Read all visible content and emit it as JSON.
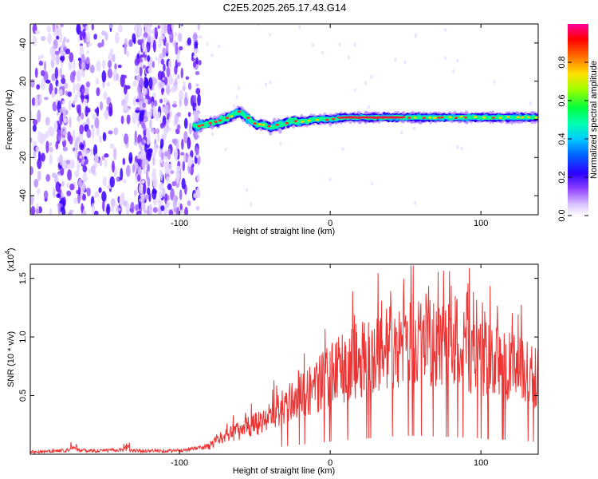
{
  "title": "C2E5.2025.265.17.43.G14",
  "chart_data": [
    {
      "type": "heatmap",
      "xlabel": "Height of straight line (km)",
      "ylabel": "Frequency (Hz)",
      "xlim": [
        -199,
        138
      ],
      "ylim": [
        -50,
        50
      ],
      "xticks": [
        -100,
        0,
        100
      ],
      "yticks": [
        -40,
        -20,
        0,
        20,
        40
      ],
      "colorbar": {
        "label": "Normalized spectral amplitude",
        "range": [
          0,
          1
        ],
        "ticks": [
          "0.0",
          "0.2",
          "0.4",
          "0.6",
          "0.8"
        ],
        "colormap": [
          "#ffffff",
          "#c9a6ff",
          "#7a2cff",
          "#2a00ff",
          "#0033ff",
          "#00bfff",
          "#00ffc8",
          "#00ff3c",
          "#8cff00",
          "#ffe600",
          "#ff6600",
          "#ff0000",
          "#ff00a0"
        ]
      },
      "ridge": {
        "x": [
          -90,
          -85,
          -80,
          -75,
          -70,
          -65,
          -60,
          -55,
          -50,
          -45,
          -40,
          -35,
          -30,
          -25,
          -20,
          -15,
          -10,
          -5,
          0,
          10,
          20,
          30,
          40,
          50,
          60,
          70,
          80,
          90,
          100,
          110,
          120,
          130,
          138
        ],
        "y": [
          -4,
          -3,
          -2,
          -1,
          0,
          2,
          4,
          1,
          -2,
          -3,
          -4,
          -3,
          -2,
          -1,
          -1,
          -1,
          0,
          0,
          0,
          1,
          1,
          1,
          1,
          1,
          1,
          1,
          1,
          1,
          1,
          1,
          1,
          1,
          1
        ]
      },
      "noise_region_x": [
        -199,
        -88
      ]
    },
    {
      "type": "line",
      "xlabel": "Height of straight line (km)",
      "ylabel": "SNR (10 * v/v)",
      "scale_label": "(x10",
      "scale_exp": "4",
      "scale_close": ")",
      "xlim": [
        -199,
        138
      ],
      "ylim": [
        0,
        1.62
      ],
      "xticks": [
        -100,
        0,
        100
      ],
      "yticks": [
        0.5,
        1.0,
        1.5
      ],
      "ytick_labels": [
        "0.5",
        "1.0",
        "1.5"
      ],
      "series": [
        {
          "color": "#ee3333",
          "envelope_x": [
            -199,
            -180,
            -170,
            -160,
            -150,
            -140,
            -130,
            -120,
            -100,
            -90,
            -80,
            -75,
            -70,
            -65,
            -60,
            -55,
            -50,
            -45,
            -40,
            -35,
            -30,
            -25,
            -20,
            -15,
            -10,
            -5,
            0,
            10,
            20,
            30,
            40,
            50,
            60,
            70,
            80,
            90,
            100,
            110,
            120,
            130,
            138
          ],
          "envelope_mean": [
            0.02,
            0.03,
            0.04,
            0.03,
            0.03,
            0.04,
            0.03,
            0.03,
            0.03,
            0.05,
            0.07,
            0.12,
            0.16,
            0.2,
            0.22,
            0.25,
            0.28,
            0.3,
            0.35,
            0.4,
            0.45,
            0.5,
            0.55,
            0.58,
            0.62,
            0.68,
            0.72,
            0.8,
            0.88,
            0.92,
            1.0,
            1.05,
            1.05,
            1.0,
            0.98,
            0.95,
            0.9,
            0.85,
            0.8,
            0.75,
            0.7
          ]
        }
      ]
    }
  ]
}
